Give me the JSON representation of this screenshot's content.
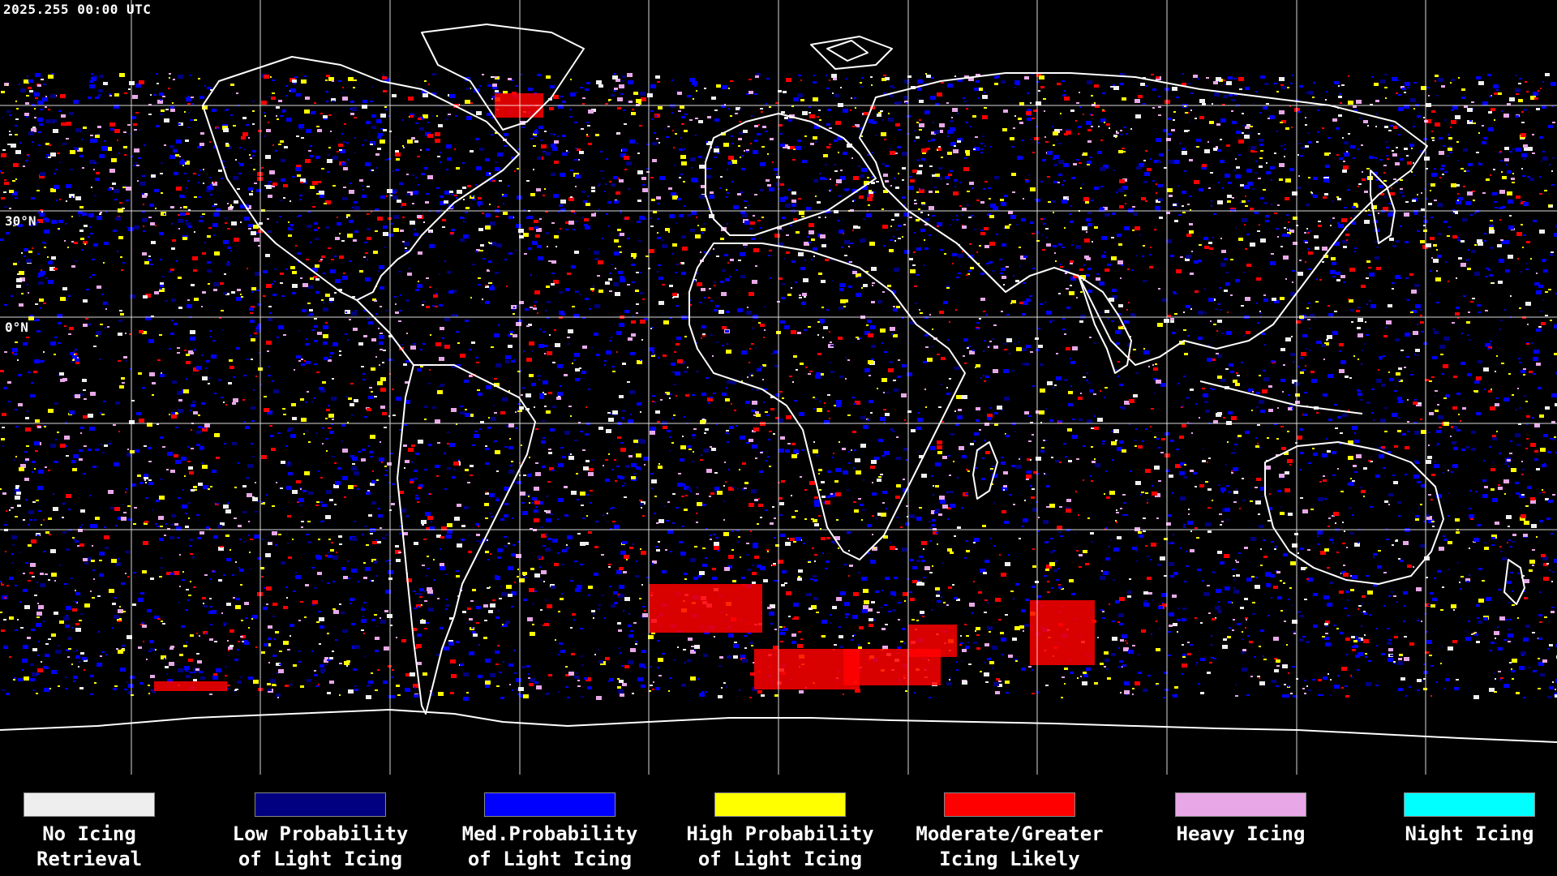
{
  "header": {
    "timestamp": "2025.255 00:00 UTC"
  },
  "map": {
    "lat_labels": [
      {
        "text": "30°N",
        "lat": 30
      },
      {
        "text": "0°N",
        "lat": 0
      }
    ],
    "grid_line_color": "#ffffff",
    "coastline_color": "#ffffff",
    "background_color": "#000000"
  },
  "legend": {
    "items": [
      {
        "line1": "No Icing",
        "line2": "Retrieval",
        "color": "#eeeeee"
      },
      {
        "line1": "Low Probability",
        "line2": "of Light Icing",
        "color": "#000080"
      },
      {
        "line1": "Med.Probability",
        "line2": "of Light Icing",
        "color": "#0000ff"
      },
      {
        "line1": "High Probability",
        "line2": "of Light Icing",
        "color": "#ffff00"
      },
      {
        "line1": "Moderate/Greater",
        "line2": "Icing Likely",
        "color": "#ff0000"
      },
      {
        "line1": "Heavy Icing",
        "line2": "",
        "color": "#e8a8e8"
      },
      {
        "line1": "Night Icing",
        "line2": "",
        "color": "#00ffff"
      }
    ]
  }
}
